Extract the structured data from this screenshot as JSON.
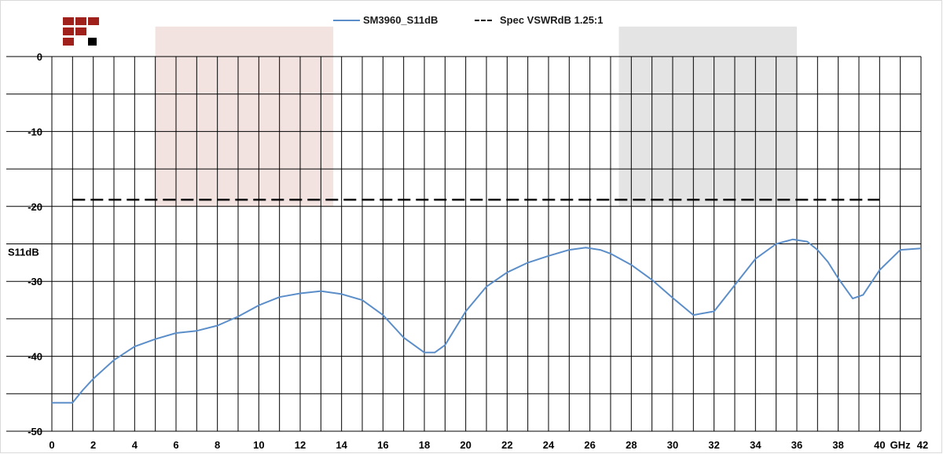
{
  "chart_data": {
    "type": "line",
    "ylabel": "S11dB",
    "x_unit_label": "GHz",
    "xlim": [
      0,
      42
    ],
    "ylim": [
      -50,
      0
    ],
    "x_ticks": [
      "0",
      "2",
      "4",
      "6",
      "8",
      "10",
      "12",
      "14",
      "16",
      "18",
      "20",
      "22",
      "24",
      "26",
      "28",
      "30",
      "32",
      "34",
      "36",
      "38",
      "40",
      "42"
    ],
    "y_ticks": [
      "0",
      "-10",
      "-20",
      "-30",
      "-40",
      "-50"
    ],
    "grid": true,
    "legend_position": "top",
    "shaded_bands": [
      {
        "x_from": 5,
        "x_to": 13.6,
        "y_from": -20,
        "y_to": 4,
        "color": "#f2e2e0"
      },
      {
        "x_from": 27.4,
        "x_to": 36,
        "y_from": -20,
        "y_to": 4,
        "color": "#e4e4e4"
      }
    ],
    "series": [
      {
        "name": "SM3960_S11dB",
        "color": "#5b8ec9",
        "style": "solid",
        "x": [
          0,
          0.5,
          1.0,
          1.5,
          2,
          3,
          4,
          5,
          6,
          7,
          8,
          9,
          10,
          11,
          12,
          13,
          14,
          15,
          16,
          17,
          18,
          18.5,
          19,
          20,
          21,
          22,
          23,
          24,
          25,
          25.8,
          26.5,
          27,
          28,
          29,
          30,
          31,
          32,
          33,
          34,
          35,
          35.8,
          36.5,
          37,
          37.5,
          38,
          38.7,
          39.2,
          40,
          41,
          42
        ],
        "y": [
          -46.2,
          -46.2,
          -46.2,
          -44.5,
          -43,
          -40.5,
          -38.7,
          -37.7,
          -36.9,
          -36.6,
          -35.9,
          -34.7,
          -33.2,
          -32.1,
          -31.6,
          -31.3,
          -31.7,
          -32.5,
          -34.5,
          -37.5,
          -39.5,
          -39.5,
          -38.5,
          -34,
          -30.7,
          -28.8,
          -27.5,
          -26.6,
          -25.8,
          -25.5,
          -25.8,
          -26.3,
          -27.8,
          -29.8,
          -32.2,
          -34.5,
          -34,
          -30.5,
          -27,
          -25,
          -24.4,
          -24.7,
          -25.8,
          -27.4,
          -29.6,
          -32.3,
          -31.8,
          -28.5,
          -25.8,
          -25.6
        ]
      },
      {
        "name": "Spec VSWRdB 1.25:1",
        "color": "#000000",
        "style": "dashed",
        "x": [
          1,
          40
        ],
        "y": [
          -19.1,
          -19.1
        ]
      }
    ]
  },
  "legend": {
    "item1": "SM3960_S11dB",
    "item2": "Spec VSWRdB 1.25:1"
  },
  "logo": {
    "colors": [
      "#a0201c",
      "#000000"
    ]
  }
}
